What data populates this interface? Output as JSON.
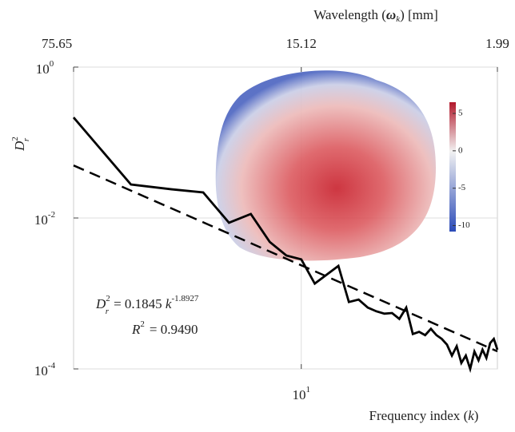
{
  "chart_data": {
    "type": "line",
    "x_label": {
      "text": "Frequency index",
      "symbol": "k"
    },
    "x2_label": {
      "text": "Wavelength",
      "symbol": "ω",
      "subscript": "k",
      "unit": "[mm]"
    },
    "y_label": {
      "symbol": "D",
      "sup": "2",
      "sub": "r"
    },
    "log_x": true,
    "log_y": true,
    "grid": true,
    "xlim": [
      2,
      40
    ],
    "ylim": [
      0.0001,
      1
    ],
    "xticks": [
      {
        "value": 10,
        "label": "10",
        "exponent": "1"
      }
    ],
    "x2ticks": [
      {
        "value": 2,
        "label": "75.65"
      },
      {
        "value": 10,
        "label": "15.12"
      },
      {
        "value": 40,
        "label": "1.99"
      }
    ],
    "yticks": [
      {
        "value": 1,
        "label": "10",
        "exponent": "0"
      },
      {
        "value": 0.01,
        "label": "10",
        "exponent": "-2"
      },
      {
        "value": 0.0001,
        "label": "10",
        "exponent": "-4"
      }
    ],
    "series": [
      {
        "color": "#000000",
        "dash": false,
        "x": [
          2,
          3,
          4,
          5,
          6,
          7,
          8,
          9,
          10,
          11,
          13,
          14,
          15,
          16,
          17,
          18,
          19,
          20,
          21,
          22,
          23,
          24,
          25,
          26,
          27,
          28,
          29,
          30,
          31,
          32,
          33,
          34,
          35,
          36,
          37,
          38,
          39,
          40
        ],
        "values": [
          0.215,
          0.0278,
          0.024,
          0.0218,
          0.00865,
          0.0113,
          0.00482,
          0.00318,
          0.00283,
          0.00135,
          0.00232,
          0.00077,
          0.00083,
          0.00065,
          0.00058,
          0.00054,
          0.00055,
          0.00046,
          0.00065,
          0.00029,
          0.00031,
          0.00028,
          0.00034,
          0.00028,
          0.00025,
          0.00021,
          0.00015,
          0.0002,
          0.00012,
          0.00015,
          0.0001,
          0.00017,
          0.00013,
          0.00018,
          0.00014,
          0.00022,
          0.00025,
          0.00018
        ]
      },
      {
        "color": "#000000",
        "dash": true,
        "x": [
          2,
          40
        ],
        "values": [
          0.0497,
          0.000171
        ]
      }
    ],
    "fit_equation": {
      "lhs": "D",
      "lhs_sup": "2",
      "lhs_sub": "r",
      "coef": "= 0.1845",
      "var": "k",
      "exponent": "-1.8927"
    },
    "r_squared": {
      "lhs": "R",
      "sup": "2",
      "value": "= 0.9490"
    },
    "colorbar": {
      "lim": [
        -10.8,
        6.5
      ],
      "ticks": [
        5,
        0,
        -5,
        -10
      ]
    }
  }
}
